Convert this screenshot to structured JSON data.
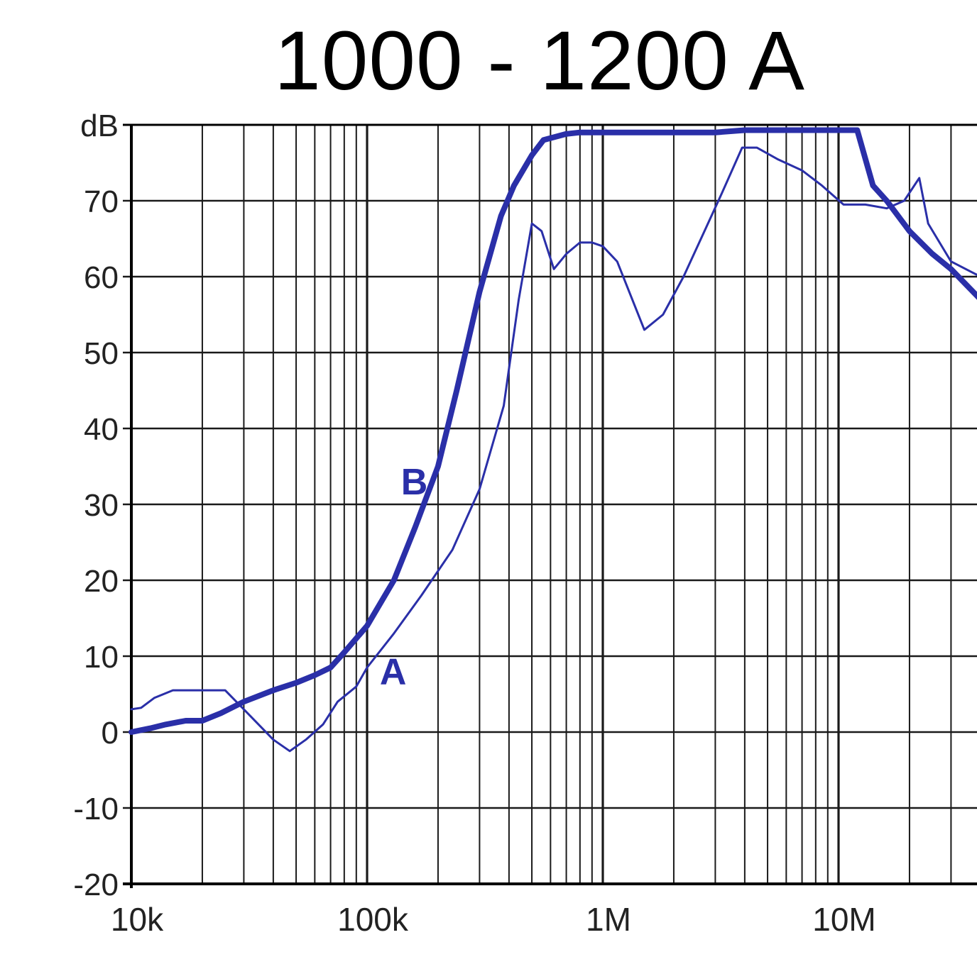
{
  "chart_data": {
    "type": "line",
    "title": "1000 - 1200 A",
    "ylabel": "dB",
    "xscale": "log",
    "xlim": [
      10000,
      40000000
    ],
    "ylim": [
      -20,
      80
    ],
    "grid": true,
    "colors": {
      "series": "#2a2fa8",
      "grid": "#1a1a1a"
    },
    "x_ticks": [
      {
        "value": 10000,
        "label": "10k"
      },
      {
        "value": 100000,
        "label": "100k"
      },
      {
        "value": 1000000,
        "label": "1M"
      },
      {
        "value": 10000000,
        "label": "10M"
      }
    ],
    "y_ticks": [
      {
        "value": -20,
        "label": "-20"
      },
      {
        "value": -10,
        "label": "-10"
      },
      {
        "value": 0,
        "label": "0"
      },
      {
        "value": 10,
        "label": "10"
      },
      {
        "value": 20,
        "label": "20"
      },
      {
        "value": 30,
        "label": "30"
      },
      {
        "value": 40,
        "label": "40"
      },
      {
        "value": 50,
        "label": "50"
      },
      {
        "value": 60,
        "label": "60"
      },
      {
        "value": 70,
        "label": "70"
      },
      {
        "value": 80,
        "label": "dB"
      }
    ],
    "series": [
      {
        "name": "A",
        "emphasis": "thin",
        "label_at": {
          "x": 130000,
          "y": 8
        },
        "points": [
          [
            10000,
            3
          ],
          [
            11000,
            3.2
          ],
          [
            12500,
            4.5
          ],
          [
            15000,
            5.5
          ],
          [
            20000,
            5.5
          ],
          [
            25000,
            5.5
          ],
          [
            30000,
            3
          ],
          [
            40000,
            -1
          ],
          [
            47000,
            -2.5
          ],
          [
            55000,
            -1
          ],
          [
            65000,
            1
          ],
          [
            75000,
            4
          ],
          [
            90000,
            6
          ],
          [
            100000,
            8.5
          ],
          [
            130000,
            13
          ],
          [
            170000,
            18
          ],
          [
            230000,
            24
          ],
          [
            300000,
            32
          ],
          [
            380000,
            43
          ],
          [
            440000,
            57
          ],
          [
            500000,
            67
          ],
          [
            550000,
            66
          ],
          [
            620000,
            61
          ],
          [
            700000,
            63
          ],
          [
            800000,
            64.5
          ],
          [
            900000,
            64.5
          ],
          [
            1000000,
            64
          ],
          [
            1150000,
            62
          ],
          [
            1500000,
            53
          ],
          [
            1800000,
            55
          ],
          [
            2200000,
            60
          ],
          [
            2700000,
            66
          ],
          [
            3200000,
            71
          ],
          [
            3900000,
            77
          ],
          [
            4500000,
            77
          ],
          [
            5500000,
            75.5
          ],
          [
            7000000,
            74
          ],
          [
            8500000,
            72
          ],
          [
            10500000,
            69.5
          ],
          [
            13000000,
            69.5
          ],
          [
            16000000,
            69
          ],
          [
            19000000,
            70
          ],
          [
            22000000,
            73
          ],
          [
            24000000,
            67
          ],
          [
            30000000,
            62
          ],
          [
            40000000,
            60
          ]
        ]
      },
      {
        "name": "B",
        "emphasis": "thick",
        "label_at": {
          "x": 160000,
          "y": 33
        },
        "points": [
          [
            10000,
            0
          ],
          [
            12000,
            0.5
          ],
          [
            14000,
            1
          ],
          [
            17000,
            1.5
          ],
          [
            20000,
            1.5
          ],
          [
            24000,
            2.5
          ],
          [
            30000,
            4
          ],
          [
            40000,
            5.5
          ],
          [
            50000,
            6.5
          ],
          [
            60000,
            7.5
          ],
          [
            70000,
            8.5
          ],
          [
            80000,
            10.5
          ],
          [
            100000,
            14
          ],
          [
            130000,
            20
          ],
          [
            160000,
            27
          ],
          [
            200000,
            35
          ],
          [
            240000,
            45
          ],
          [
            300000,
            58
          ],
          [
            370000,
            68
          ],
          [
            420000,
            72
          ],
          [
            500000,
            76
          ],
          [
            560000,
            78
          ],
          [
            700000,
            78.8
          ],
          [
            800000,
            79
          ],
          [
            1000000,
            79
          ],
          [
            3000000,
            79
          ],
          [
            4000000,
            79.3
          ],
          [
            10000000,
            79.3
          ],
          [
            12000000,
            79.3
          ],
          [
            14000000,
            72
          ],
          [
            16000000,
            70
          ],
          [
            20000000,
            66
          ],
          [
            25000000,
            63
          ],
          [
            30000000,
            61
          ],
          [
            40000000,
            57
          ]
        ]
      }
    ]
  }
}
